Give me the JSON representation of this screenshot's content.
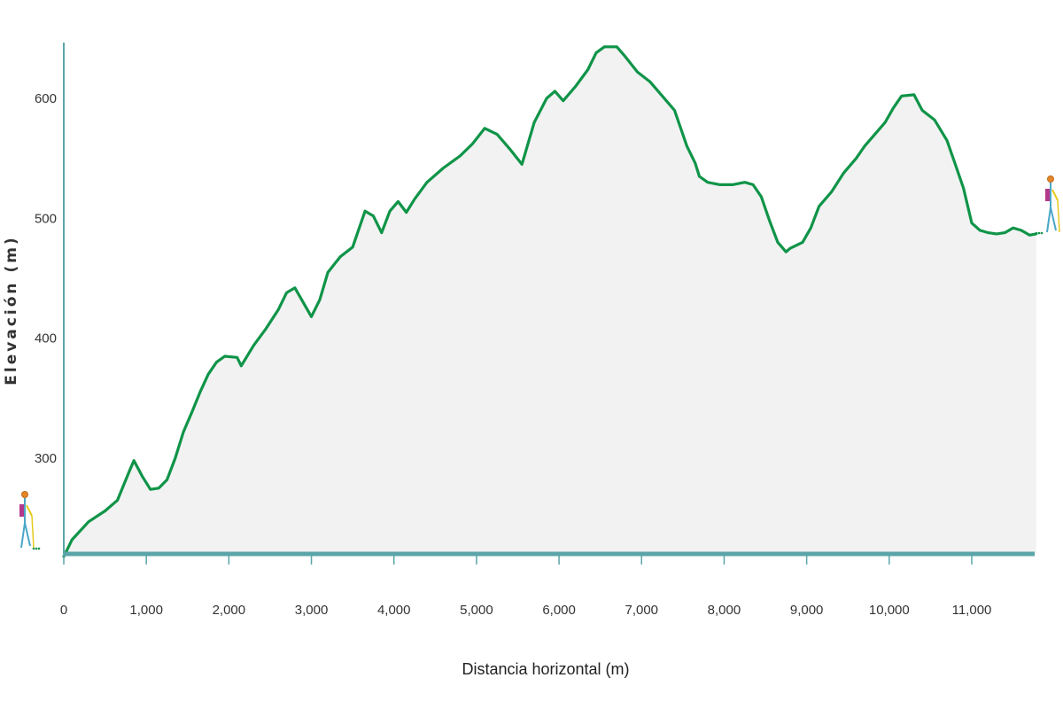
{
  "chart_data": {
    "type": "area",
    "title": "",
    "xlabel": "Distancia horizontal (m)",
    "ylabel": "Elevación (m)",
    "xlim": [
      0,
      11800
    ],
    "ylim": [
      215,
      645
    ],
    "x_ticks": [
      0,
      1000,
      2000,
      3000,
      4000,
      5000,
      6000,
      7000,
      8000,
      9000,
      10000,
      11000
    ],
    "x_tick_labels": [
      "0",
      "1,000",
      "2,000",
      "3,000",
      "4,000",
      "5,000",
      "6,000",
      "7,000",
      "8,000",
      "9,000",
      "10,000",
      "11,000"
    ],
    "y_ticks": [
      300,
      400,
      500,
      600
    ],
    "y_tick_labels": [
      "300",
      "400",
      "500",
      "600"
    ],
    "grid": false,
    "colors": {
      "line": "#0f9448",
      "fill": "#f2f2f2",
      "x_axis": "#5ba5a8",
      "y_axis": "#5ba5a8"
    },
    "icons": [
      "hiker-start-icon",
      "hiker-end-icon"
    ],
    "series": [
      {
        "x": [
          0,
          100,
          300,
          500,
          650,
          800,
          850,
          950,
          1050,
          1150,
          1250,
          1350,
          1450,
          1550,
          1650,
          1750,
          1850,
          1950,
          2100,
          2150,
          2300,
          2450,
          2600,
          2700,
          2800,
          2900,
          3000,
          3100,
          3200,
          3350,
          3500,
          3650,
          3750,
          3850,
          3950,
          4050,
          4150,
          4250,
          4400,
          4600,
          4800,
          4950,
          5100,
          5250,
          5400,
          5550,
          5700,
          5850,
          5950,
          6050,
          6200,
          6350,
          6450,
          6550,
          6700,
          6800,
          6950,
          7100,
          7250,
          7400,
          7550,
          7650,
          7700,
          7800,
          7950,
          8100,
          8250,
          8350,
          8450,
          8550,
          8650,
          8750,
          8800,
          8950,
          9050,
          9150,
          9300,
          9450,
          9600,
          9700,
          9800,
          9950,
          10050,
          10150,
          10300,
          10400,
          10550,
          10700,
          10800,
          10900,
          11000,
          11100,
          11200,
          11300,
          11400,
          11500,
          11600,
          11700,
          11780
        ],
        "y": [
          218,
          232,
          247,
          256,
          265,
          290,
          298,
          285,
          274,
          275,
          282,
          300,
          322,
          338,
          355,
          370,
          380,
          385,
          384,
          377,
          394,
          408,
          424,
          438,
          442,
          430,
          418,
          432,
          455,
          468,
          476,
          506,
          502,
          488,
          506,
          514,
          505,
          516,
          530,
          542,
          552,
          562,
          575,
          570,
          558,
          545,
          580,
          600,
          606,
          598,
          610,
          624,
          638,
          643,
          643,
          635,
          622,
          614,
          602,
          590,
          560,
          546,
          535,
          530,
          528,
          528,
          530,
          528,
          518,
          498,
          480,
          472,
          475,
          480,
          492,
          510,
          522,
          538,
          550,
          560,
          568,
          580,
          592,
          602,
          603,
          590,
          582,
          565,
          545,
          525,
          496,
          490,
          488,
          487,
          488,
          492,
          490,
          486,
          487
        ]
      }
    ]
  }
}
